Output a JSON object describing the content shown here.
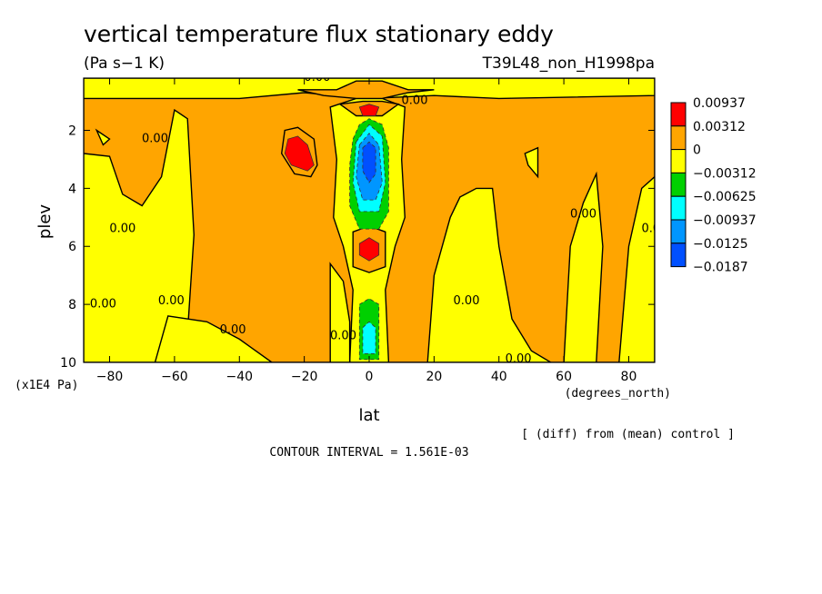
{
  "figure": {
    "title": "vertical temperature flux stationary eddy",
    "units": "(Pa s−1 K)",
    "run_label": "T39L48_non_H1998pa",
    "diff_note": "[ (diff) from (mean) control ]",
    "contour_interval": "CONTOUR INTERVAL = 1.561E-03"
  },
  "chart_data": {
    "type": "contour",
    "title": "vertical temperature flux stationary eddy",
    "xlabel": "lat",
    "xunits": "(degrees_north)",
    "ylabel": "plev",
    "yunits": "(x1E4 Pa)",
    "xlim": [
      -88,
      88
    ],
    "ylim": [
      10,
      0.2
    ],
    "x_ticks": [
      -80,
      -60,
      -40,
      -20,
      0,
      20,
      40,
      60,
      80
    ],
    "x_tick_labels": [
      "−80",
      "−60",
      "−40",
      "−20",
      "0",
      "20",
      "40",
      "60",
      "80"
    ],
    "y_ticks": [
      2,
      4,
      6,
      8,
      10
    ],
    "y_tick_labels": [
      "2",
      "4",
      "6",
      "8",
      "10"
    ],
    "contour_interval": 0.001561,
    "contour_labels": [
      "0.00"
    ],
    "legend": {
      "placement": "right",
      "boundaries": [
        "0.00937",
        "0.00312",
        "0",
        "−0.00312",
        "−0.00625",
        "−0.00937",
        "−0.0125",
        "−0.0187"
      ],
      "colors": [
        "#ff0000",
        "#ffa500",
        "#ffff00",
        "#00d000",
        "#00ffff",
        "#0096ff",
        "#0050ff"
      ]
    },
    "palette": {
      "pos_high": "#ff0000",
      "pos": "#ffa500",
      "neg": "#ffff00",
      "neg2": "#00d000",
      "neg3": "#00ffff",
      "neg4": "#0096ff",
      "neg5": "#0050ff"
    },
    "regions": [
      {
        "level": "pos",
        "points": [
          [
            -88,
            0.2
          ],
          [
            88,
            0.2
          ],
          [
            88,
            10
          ],
          [
            -88,
            10
          ]
        ]
      },
      {
        "level": "neg",
        "points": [
          [
            -88,
            0.2
          ],
          [
            -20,
            0.2
          ],
          [
            20,
            0.2
          ],
          [
            88,
            0.2
          ],
          [
            88,
            0.8
          ],
          [
            40,
            0.9
          ],
          [
            20,
            0.8
          ],
          [
            0,
            0.9
          ],
          [
            -20,
            0.7
          ],
          [
            -40,
            0.9
          ],
          [
            -88,
            0.9
          ]
        ]
      },
      {
        "level": "neg",
        "points": [
          [
            -88,
            2.8
          ],
          [
            -80,
            2.9
          ],
          [
            -76,
            4.2
          ],
          [
            -70,
            4.6
          ],
          [
            -64,
            3.6
          ],
          [
            -60,
            1.3
          ],
          [
            -56,
            1.6
          ],
          [
            -54,
            5.6
          ],
          [
            -56,
            9
          ],
          [
            -58,
            10
          ],
          [
            -88,
            10
          ]
        ]
      },
      {
        "level": "neg",
        "points": [
          [
            -30,
            10
          ],
          [
            -40,
            9.2
          ],
          [
            -50,
            8.6
          ],
          [
            -62,
            8.4
          ],
          [
            -66,
            10
          ]
        ]
      },
      {
        "level": "neg",
        "points": [
          [
            -12,
            1.2
          ],
          [
            -10,
            3
          ],
          [
            -11,
            5
          ],
          [
            -8,
            6
          ],
          [
            -5,
            7.5
          ],
          [
            -6,
            10
          ],
          [
            6,
            10
          ],
          [
            5,
            7.5
          ],
          [
            8,
            6
          ],
          [
            11,
            5
          ],
          [
            10,
            3
          ],
          [
            11,
            1.2
          ],
          [
            4,
            0.9
          ],
          [
            -4,
            0.9
          ]
        ]
      },
      {
        "level": "neg",
        "points": [
          [
            -12,
            6.6
          ],
          [
            -8,
            7.2
          ],
          [
            -6,
            8.6
          ],
          [
            -6,
            10
          ],
          [
            -12,
            10
          ]
        ]
      },
      {
        "level": "neg",
        "points": [
          [
            18,
            10
          ],
          [
            20,
            7
          ],
          [
            25,
            5
          ],
          [
            28,
            4.3
          ],
          [
            33,
            4
          ],
          [
            38,
            4
          ],
          [
            40,
            6
          ],
          [
            44,
            8.5
          ],
          [
            50,
            9.6
          ],
          [
            56,
            10
          ]
        ]
      },
      {
        "level": "neg",
        "points": [
          [
            60,
            10
          ],
          [
            62,
            6
          ],
          [
            66,
            4.5
          ],
          [
            70,
            3.5
          ],
          [
            72,
            6
          ],
          [
            70,
            10
          ]
        ]
      },
      {
        "level": "neg",
        "points": [
          [
            77,
            10
          ],
          [
            80,
            6
          ],
          [
            84,
            4
          ],
          [
            88,
            3.6
          ],
          [
            88,
            10
          ]
        ]
      },
      {
        "level": "neg",
        "points": [
          [
            48,
            2.8
          ],
          [
            52,
            2.6
          ],
          [
            52,
            3.6
          ],
          [
            49,
            3.2
          ]
        ]
      },
      {
        "level": "neg",
        "points": [
          [
            -84,
            2
          ],
          [
            -82,
            2.5
          ],
          [
            -80,
            2.3
          ]
        ]
      },
      {
        "level": "pos",
        "points": [
          [
            -22,
            0.6
          ],
          [
            -10,
            0.6
          ],
          [
            -4,
            0.3
          ],
          [
            4,
            0.3
          ],
          [
            12,
            0.6
          ],
          [
            20,
            0.6
          ],
          [
            12,
            0.7
          ],
          [
            4,
            0.9
          ],
          [
            -4,
            0.9
          ],
          [
            -14,
            0.8
          ]
        ]
      },
      {
        "level": "pos",
        "points": [
          [
            -26,
            2.0
          ],
          [
            -22,
            1.9
          ],
          [
            -17,
            2.3
          ],
          [
            -16,
            3.2
          ],
          [
            -18,
            3.6
          ],
          [
            -23,
            3.5
          ],
          [
            -27,
            2.8
          ]
        ]
      },
      {
        "level": "pos",
        "points": [
          [
            -9,
            1.1
          ],
          [
            -2,
            1.0
          ],
          [
            4,
            1.0
          ],
          [
            9,
            1.1
          ],
          [
            4,
            1.5
          ],
          [
            -4,
            1.5
          ]
        ]
      },
      {
        "level": "pos",
        "points": [
          [
            -5,
            5.5
          ],
          [
            0,
            5.3
          ],
          [
            5,
            5.5
          ],
          [
            5,
            6.7
          ],
          [
            0,
            6.9
          ],
          [
            -5,
            6.7
          ]
        ]
      },
      {
        "level": "pos_high",
        "points": [
          [
            -25,
            2.3
          ],
          [
            -22,
            2.2
          ],
          [
            -19,
            2.5
          ],
          [
            -17,
            3.2
          ],
          [
            -19,
            3.4
          ],
          [
            -24,
            3.2
          ],
          [
            -26,
            2.8
          ]
        ]
      },
      {
        "level": "pos_high",
        "points": [
          [
            -3,
            1.2
          ],
          [
            0,
            1.1
          ],
          [
            3,
            1.2
          ],
          [
            2,
            1.5
          ],
          [
            -2,
            1.5
          ]
        ]
      },
      {
        "level": "pos_high",
        "points": [
          [
            -3,
            5.9
          ],
          [
            0,
            5.7
          ],
          [
            3,
            5.9
          ],
          [
            3,
            6.3
          ],
          [
            0,
            6.5
          ],
          [
            -3,
            6.3
          ]
        ]
      },
      {
        "level": "neg2",
        "points": [
          [
            -5,
            2.3
          ],
          [
            -3,
            1.8
          ],
          [
            0,
            1.6
          ],
          [
            4,
            1.8
          ],
          [
            6,
            2.6
          ],
          [
            6,
            4.8
          ],
          [
            3,
            5.4
          ],
          [
            -3,
            5.4
          ],
          [
            -6,
            4.6
          ],
          [
            -6,
            3.2
          ]
        ]
      },
      {
        "level": "neg3",
        "points": [
          [
            -4,
            2.4
          ],
          [
            0,
            1.8
          ],
          [
            4,
            2.2
          ],
          [
            5,
            3.8
          ],
          [
            3,
            4.8
          ],
          [
            -3,
            4.8
          ],
          [
            -5,
            3.8
          ]
        ]
      },
      {
        "level": "neg4",
        "points": [
          [
            -3,
            2.5
          ],
          [
            0,
            2.1
          ],
          [
            3,
            2.5
          ],
          [
            4,
            3.8
          ],
          [
            2,
            4.4
          ],
          [
            -2,
            4.4
          ],
          [
            -4,
            3.6
          ]
        ]
      },
      {
        "level": "neg5",
        "points": [
          [
            -2,
            2.6
          ],
          [
            0,
            2.4
          ],
          [
            2,
            2.6
          ],
          [
            2,
            3.5
          ],
          [
            0,
            3.8
          ],
          [
            -2,
            3.4
          ]
        ]
      },
      {
        "level": "neg2",
        "points": [
          [
            -3,
            8.0
          ],
          [
            0,
            7.8
          ],
          [
            3,
            8.0
          ],
          [
            3,
            9.9
          ],
          [
            -3,
            9.9
          ]
        ]
      },
      {
        "level": "neg3",
        "points": [
          [
            -2,
            8.8
          ],
          [
            0,
            8.6
          ],
          [
            2,
            8.8
          ],
          [
            2,
            9.7
          ],
          [
            -2,
            9.7
          ]
        ]
      }
    ],
    "label_positions": [
      [
        -66,
        2.4
      ],
      [
        -76,
        5.5
      ],
      [
        -82,
        8.1
      ],
      [
        -61,
        8
      ],
      [
        -42,
        9
      ],
      [
        -8,
        9.2
      ],
      [
        14,
        1.1
      ],
      [
        -16,
        0.3
      ],
      [
        30,
        8
      ],
      [
        46,
        10
      ],
      [
        66,
        5
      ],
      [
        88,
        5.5
      ]
    ]
  }
}
